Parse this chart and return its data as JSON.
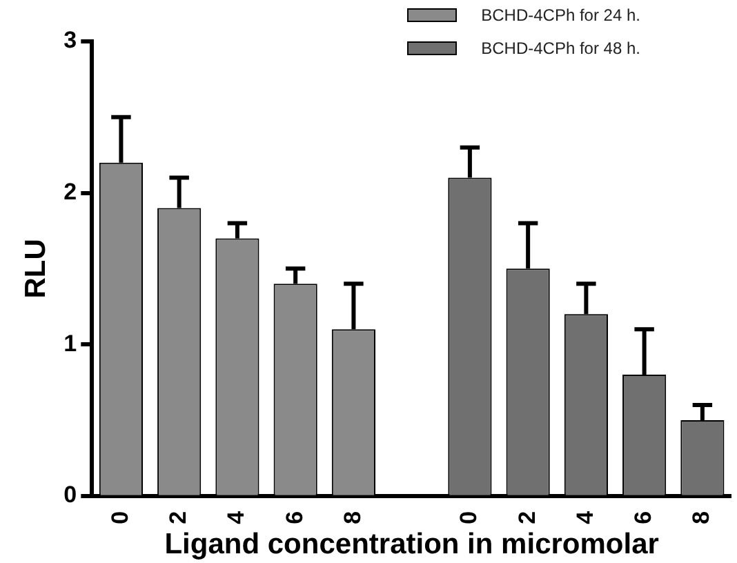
{
  "chart_data": {
    "type": "bar",
    "xlabel": "Ligand concentration in micromolar",
    "ylabel": "RLU",
    "categories": [
      "0",
      "2",
      "4",
      "6",
      "8",
      null,
      "0",
      "2",
      "4",
      "6",
      "8"
    ],
    "series": [
      {
        "name": "BCHD-4CPh for 24 h.",
        "color": "#8a8a8a",
        "values": [
          2.2,
          1.9,
          1.7,
          1.4,
          1.1,
          null,
          null,
          null,
          null,
          null,
          null
        ],
        "errors": [
          [
            2.2,
            2.5
          ],
          [
            1.9,
            2.1
          ],
          [
            1.7,
            1.8
          ],
          [
            1.4,
            1.5
          ],
          [
            1.1,
            1.4
          ],
          null,
          null,
          null,
          null,
          null,
          null
        ]
      },
      {
        "name": "BCHD-4CPh for 48 h.",
        "color": "#707070",
        "values": [
          null,
          null,
          null,
          null,
          null,
          null,
          2.1,
          1.5,
          1.2,
          0.8,
          0.5
        ],
        "errors": [
          null,
          null,
          null,
          null,
          null,
          null,
          [
            2.1,
            2.3
          ],
          [
            1.5,
            1.8
          ],
          [
            1.2,
            1.4
          ],
          [
            0.8,
            1.1
          ],
          [
            0.5,
            0.6
          ]
        ]
      }
    ],
    "ylim": [
      0,
      3
    ],
    "yticks": [
      0,
      1,
      2,
      3
    ],
    "grid": false,
    "legend": "top right"
  }
}
